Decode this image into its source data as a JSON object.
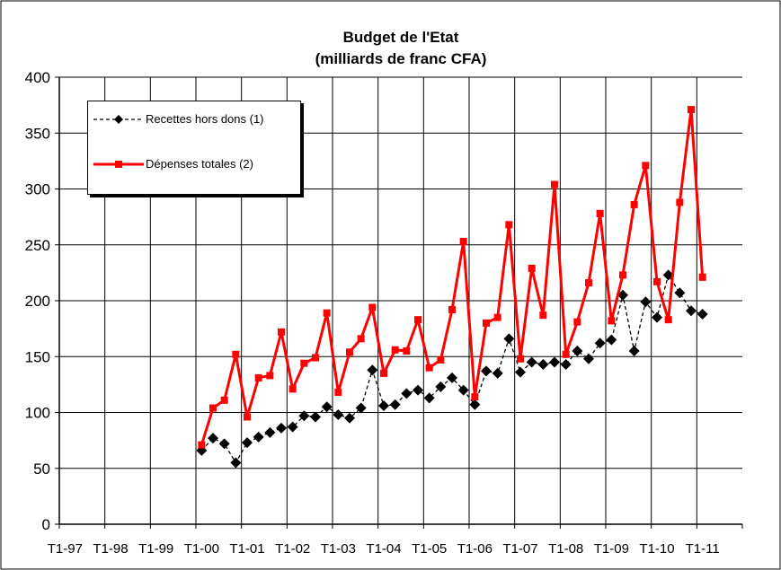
{
  "chart_data": {
    "type": "line",
    "title": "Budget de l'Etat",
    "subtitle": "(milliards de franc CFA)",
    "categories": [
      "T1-97",
      null,
      null,
      null,
      "T1-98",
      null,
      null,
      null,
      "T1-99",
      null,
      null,
      null,
      "T1-00",
      null,
      null,
      null,
      "T1-01",
      null,
      null,
      null,
      "T1-02",
      null,
      null,
      null,
      "T1-03",
      null,
      null,
      null,
      "T1-04",
      null,
      null,
      null,
      "T1-05",
      null,
      null,
      null,
      "T1-06",
      null,
      null,
      null,
      "T1-07",
      null,
      null,
      null,
      "T1-08",
      null,
      null,
      null,
      "T1-09",
      null,
      null,
      null,
      "T1-10",
      null,
      null,
      null,
      "T1-11",
      null,
      null,
      null
    ],
    "series": [
      {
        "name": "Recettes hors dons (1)",
        "color": "#000000",
        "marker": "diamond",
        "dashed": true,
        "values": [
          null,
          null,
          null,
          null,
          null,
          null,
          null,
          null,
          null,
          null,
          null,
          null,
          66,
          77,
          72,
          55,
          73,
          78,
          82,
          86,
          87,
          97,
          96,
          105,
          98,
          95,
          104,
          138,
          106,
          107,
          117,
          120,
          113,
          123,
          131,
          120,
          107,
          137,
          135,
          166,
          136,
          145,
          143,
          145,
          143,
          155,
          148,
          162,
          165,
          205,
          155,
          199,
          185,
          223,
          207,
          191,
          188,
          null,
          null,
          null
        ]
      },
      {
        "name": "Dépenses totales (2)",
        "color": "#ff0000",
        "marker": "square",
        "dashed": false,
        "values": [
          null,
          null,
          null,
          null,
          null,
          null,
          null,
          null,
          null,
          null,
          null,
          null,
          71,
          104,
          111,
          152,
          96,
          131,
          133,
          172,
          121,
          144,
          149,
          189,
          118,
          154,
          166,
          194,
          135,
          156,
          155,
          183,
          140,
          147,
          192,
          253,
          114,
          180,
          185,
          268,
          148,
          229,
          187,
          304,
          152,
          181,
          216,
          278,
          182,
          223,
          286,
          321,
          217,
          183,
          288,
          371,
          221,
          null,
          null,
          null
        ]
      }
    ],
    "ylim": [
      0,
      400
    ],
    "yticks": [
      0,
      50,
      100,
      150,
      200,
      250,
      300,
      350,
      400
    ],
    "grid": true,
    "legend": "upper-left"
  }
}
